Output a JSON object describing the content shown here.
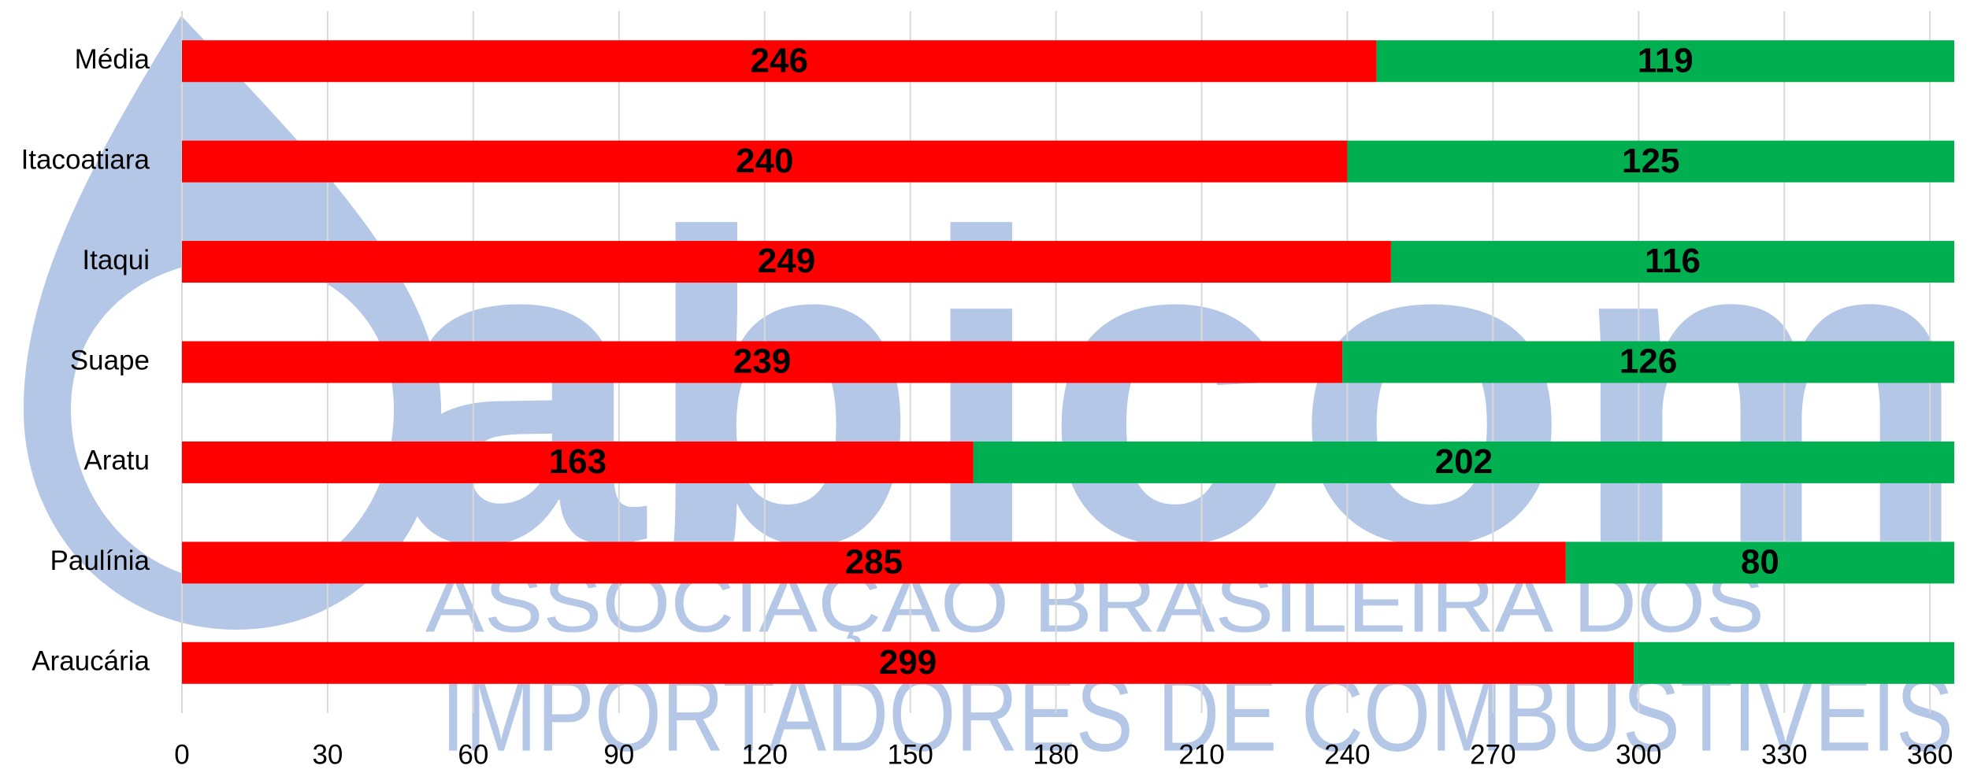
{
  "chart_data": {
    "type": "stacked_bar_horizontal",
    "watermark": {
      "brand": "abicom",
      "line1": "ASSOCIAÇÃO BRASILEIRA DOS",
      "line2": "IMPORTADORES DE COMBUSTÍVEIS"
    },
    "categories": [
      "Média",
      "Itacoatiara",
      "Itaqui",
      "Suape",
      "Aratu",
      "Paulínia",
      "Araucária"
    ],
    "series": [
      {
        "color": "#ff0000",
        "values": [
          246,
          240,
          249,
          239,
          163,
          285,
          299
        ]
      },
      {
        "color": "#00b050",
        "values": [
          119,
          125,
          116,
          126,
          202,
          80,
          66
        ],
        "value_labels": [
          "119",
          "125",
          "116",
          "126",
          "202",
          "80",
          null
        ]
      }
    ],
    "xlim": [
      0,
      365
    ],
    "xticks": [
      0,
      30,
      60,
      90,
      120,
      150,
      180,
      210,
      240,
      270,
      300,
      330,
      360
    ],
    "grid": true
  }
}
